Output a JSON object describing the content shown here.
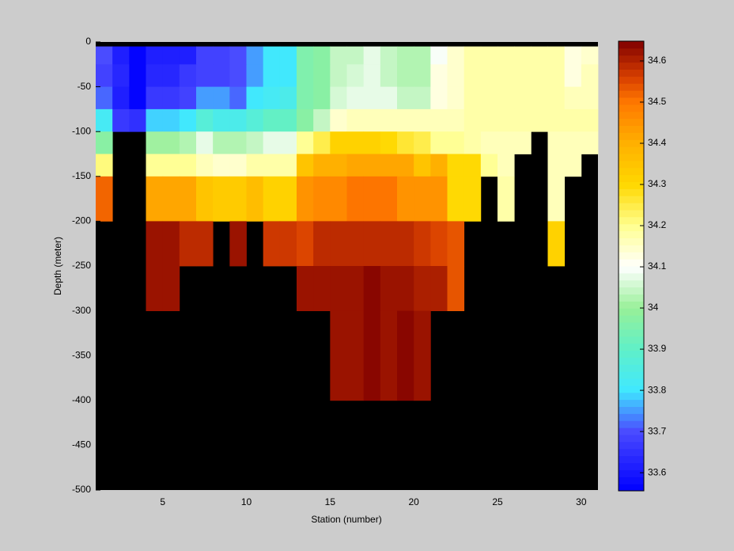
{
  "chart_data": {
    "type": "heatmap",
    "xlabel": "Station (number)",
    "ylabel": "Depth (meter)",
    "xlim": [
      1,
      31
    ],
    "ylim": [
      -500,
      0
    ],
    "xticks": [
      5,
      10,
      15,
      20,
      25,
      30
    ],
    "yticks": [
      0,
      -50,
      -100,
      -150,
      -200,
      -250,
      -300,
      -350,
      -400,
      -450,
      -500
    ],
    "xedges": [
      1,
      2,
      3,
      4,
      5,
      6,
      7,
      8,
      9,
      10,
      11,
      12,
      13,
      14,
      15,
      16,
      17,
      18,
      19,
      20,
      21,
      22,
      23,
      24,
      25,
      26,
      27,
      28,
      29,
      30,
      31
    ],
    "yedges": [
      -5,
      -25,
      -50,
      -75,
      -100,
      -125,
      -150,
      -200,
      -250,
      -300,
      -400
    ],
    "z": [
      [
        33.7,
        33.62,
        33.57,
        33.62,
        33.62,
        33.62,
        33.68,
        33.68,
        33.7,
        33.75,
        33.8,
        33.8,
        33.95,
        33.98,
        34.05,
        34.05,
        34.07,
        34.05,
        34.03,
        34.03,
        34.1,
        34.15,
        34.18,
        34.18,
        34.18,
        34.18,
        34.18,
        34.18,
        34.12,
        34.15
      ],
      [
        33.68,
        33.63,
        33.57,
        33.63,
        33.63,
        33.66,
        33.68,
        33.68,
        33.7,
        33.75,
        33.8,
        33.8,
        33.95,
        33.97,
        34.05,
        34.06,
        34.07,
        34.05,
        34.02,
        34.02,
        34.12,
        34.15,
        34.18,
        34.18,
        34.18,
        34.18,
        34.18,
        34.18,
        34.13,
        34.16
      ],
      [
        33.72,
        33.62,
        33.57,
        33.66,
        33.66,
        33.68,
        33.75,
        33.75,
        33.72,
        33.8,
        33.82,
        33.83,
        33.95,
        33.98,
        34.06,
        34.08,
        34.08,
        34.07,
        34.05,
        34.05,
        34.12,
        34.15,
        34.18,
        34.18,
        34.18,
        34.18,
        34.18,
        34.18,
        34.17,
        34.17
      ],
      [
        33.82,
        33.67,
        33.65,
        33.78,
        33.78,
        33.8,
        33.88,
        33.83,
        33.83,
        33.88,
        33.9,
        33.9,
        33.97,
        34.05,
        34.15,
        34.17,
        34.17,
        34.17,
        34.17,
        34.17,
        34.17,
        34.16,
        34.18,
        34.18,
        34.18,
        34.18,
        34.18,
        34.18,
        34.18,
        34.18
      ],
      [
        33.97,
        null,
        null,
        34.0,
        34.0,
        34.03,
        34.07,
        34.02,
        34.02,
        34.05,
        34.07,
        34.07,
        34.2,
        34.25,
        34.32,
        34.32,
        34.32,
        34.3,
        34.27,
        34.25,
        34.2,
        34.2,
        34.18,
        34.17,
        34.17,
        34.17,
        null,
        34.17,
        34.17,
        34.17
      ],
      [
        34.22,
        null,
        null,
        34.2,
        34.2,
        34.2,
        34.17,
        34.15,
        34.15,
        34.18,
        34.18,
        34.18,
        34.35,
        34.4,
        34.4,
        34.42,
        34.42,
        34.42,
        34.42,
        34.35,
        34.4,
        34.3,
        34.3,
        34.2,
        34.17,
        null,
        null,
        34.17,
        34.17,
        null
      ],
      [
        34.52,
        null,
        null,
        34.42,
        34.42,
        34.42,
        34.35,
        34.33,
        34.33,
        34.37,
        34.32,
        34.32,
        34.45,
        34.47,
        34.47,
        34.5,
        34.5,
        34.5,
        34.45,
        34.45,
        34.45,
        34.3,
        34.3,
        null,
        34.18,
        null,
        null,
        34.17,
        null,
        null
      ],
      [
        null,
        null,
        null,
        34.62,
        34.62,
        34.58,
        34.58,
        null,
        34.63,
        null,
        34.57,
        34.57,
        34.55,
        34.58,
        34.58,
        34.58,
        34.58,
        34.58,
        34.58,
        34.57,
        34.55,
        34.53,
        null,
        null,
        null,
        null,
        null,
        34.32,
        null,
        null
      ],
      [
        null,
        null,
        null,
        34.62,
        34.62,
        null,
        null,
        null,
        null,
        null,
        null,
        null,
        34.62,
        34.62,
        34.62,
        34.62,
        34.64,
        34.62,
        34.62,
        34.6,
        34.6,
        34.53,
        null,
        null,
        null,
        null,
        null,
        null,
        null,
        null
      ],
      [
        null,
        null,
        null,
        null,
        null,
        null,
        null,
        null,
        null,
        null,
        null,
        null,
        null,
        null,
        34.63,
        34.62,
        34.64,
        34.62,
        34.64,
        34.63,
        null,
        null,
        null,
        null,
        null,
        null,
        null,
        null,
        null,
        null
      ]
    ],
    "missing_color": "#000000",
    "clim": [
      33.556,
      34.648
    ],
    "cticks": [
      33.6,
      33.7,
      33.8,
      33.9,
      34,
      34.1,
      34.2,
      34.3,
      34.4,
      34.5,
      34.6
    ],
    "colormap_levels": 64,
    "colormap": [
      {
        "value": 33.556,
        "color": "#0000ff"
      },
      {
        "value": 33.7,
        "color": "#4a4aff"
      },
      {
        "value": 33.8,
        "color": "#40e8ff"
      },
      {
        "value": 33.9,
        "color": "#60f0c8"
      },
      {
        "value": 34.0,
        "color": "#98f098"
      },
      {
        "value": 34.1,
        "color": "#ffffff"
      },
      {
        "value": 34.2,
        "color": "#ffff90"
      },
      {
        "value": 34.3,
        "color": "#ffd800"
      },
      {
        "value": 34.4,
        "color": "#ffb000"
      },
      {
        "value": 34.5,
        "color": "#ff7800"
      },
      {
        "value": 34.56,
        "color": "#d84000"
      },
      {
        "value": 34.648,
        "color": "#800000"
      }
    ]
  }
}
